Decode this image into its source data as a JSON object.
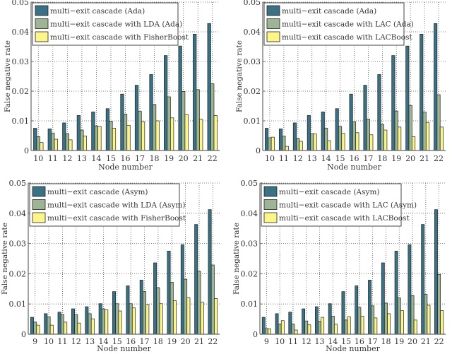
{
  "colors": {
    "series1": "#3a7184",
    "series2": "#9db594",
    "series3": "#fcf58a",
    "bar_edge": "#222222",
    "grid": "#555555",
    "axis": "#666666"
  },
  "chart_data": [
    {
      "type": "bar",
      "title": "",
      "xlabel": "Node number",
      "ylabel": "False negative rate",
      "ylim": [
        0,
        0.05
      ],
      "yticks": [
        "0",
        "0.01",
        "0.02",
        "0.03",
        "0.04",
        "0.05"
      ],
      "grid": true,
      "legend_position": "top-left",
      "categories": [
        "10",
        "11",
        "12",
        "13",
        "14",
        "15",
        "16",
        "17",
        "18",
        "19",
        "20",
        "21",
        "22"
      ],
      "series": [
        {
          "name": "multi−exit cascade (Ada)",
          "values": [
            0.0075,
            0.0073,
            0.0093,
            0.0118,
            0.013,
            0.0141,
            0.019,
            0.022,
            0.0256,
            0.032,
            0.0352,
            0.0392,
            0.0428
          ]
        },
        {
          "name": "multi−exit cascade with LDA (Ada)",
          "values": [
            0.0047,
            0.0059,
            0.0057,
            0.0069,
            0.0083,
            0.0099,
            0.0123,
            0.0132,
            0.0155,
            0.0181,
            0.0199,
            0.0205,
            0.0225
          ]
        },
        {
          "name": "multi−exit cascade with FisherBoost",
          "values": [
            0.0027,
            0.0038,
            0.0036,
            0.0049,
            0.0081,
            0.0075,
            0.0085,
            0.0097,
            0.01,
            0.011,
            0.0121,
            0.0105,
            0.0118
          ]
        }
      ]
    },
    {
      "type": "bar",
      "title": "",
      "xlabel": "Node number",
      "ylabel": "False negative rate",
      "ylim": [
        0,
        0.05
      ],
      "yticks": [
        "0",
        "0.01",
        "0.02",
        "0.03",
        "0.04",
        "0.05"
      ],
      "grid": true,
      "legend_position": "top-left",
      "categories": [
        "10",
        "11",
        "12",
        "13",
        "14",
        "15",
        "16",
        "17",
        "18",
        "19",
        "20",
        "21",
        "22"
      ],
      "series": [
        {
          "name": "multi−exit cascade (Ada)",
          "values": [
            0.0075,
            0.0073,
            0.0093,
            0.0118,
            0.013,
            0.0141,
            0.019,
            0.022,
            0.0256,
            0.032,
            0.0352,
            0.0392,
            0.0428
          ]
        },
        {
          "name": "multi−exit cascade with LAC (Ada)",
          "values": [
            0.0043,
            0.0049,
            0.0041,
            0.0057,
            0.0075,
            0.0081,
            0.0097,
            0.0106,
            0.0088,
            0.0133,
            0.0152,
            0.013,
            0.0188
          ]
        },
        {
          "name": "multi−exit cascade with LACBoost",
          "values": [
            0.0045,
            0.0014,
            0.0031,
            0.0056,
            0.0033,
            0.0058,
            0.006,
            0.0053,
            0.0069,
            0.0079,
            0.0047,
            0.0095,
            0.0079
          ]
        }
      ]
    },
    {
      "type": "bar",
      "title": "",
      "xlabel": "Node number",
      "ylabel": "False negative rate",
      "ylim": [
        0,
        0.05
      ],
      "yticks": [
        "0",
        "0.01",
        "0.02",
        "0.03",
        "0.04",
        "0.05"
      ],
      "grid": true,
      "legend_position": "top-left",
      "categories": [
        "9",
        "10",
        "11",
        "12",
        "13",
        "14",
        "15",
        "16",
        "17",
        "18",
        "19",
        "20",
        "21",
        "22"
      ],
      "series": [
        {
          "name": "multi−exit cascade (Asym)",
          "values": [
            0.0056,
            0.0068,
            0.0073,
            0.0084,
            0.0091,
            0.0101,
            0.0141,
            0.016,
            0.0179,
            0.0236,
            0.0275,
            0.0296,
            0.0363,
            0.0412
          ]
        },
        {
          "name": "multi−exit cascade with LDA (Asym)",
          "values": [
            0.004,
            0.0058,
            0.0065,
            0.0065,
            0.0068,
            0.0084,
            0.0101,
            0.0101,
            0.0141,
            0.0154,
            0.0172,
            0.0182,
            0.0208,
            0.0229
          ]
        },
        {
          "name": "multi−exit cascade with FisherBoost",
          "values": [
            0.003,
            0.003,
            0.004,
            0.0037,
            0.0051,
            0.0081,
            0.0077,
            0.0087,
            0.0098,
            0.0101,
            0.0111,
            0.0121,
            0.0106,
            0.0118
          ]
        }
      ]
    },
    {
      "type": "bar",
      "title": "",
      "xlabel": "Node number",
      "ylabel": "False negative rate",
      "ylim": [
        0,
        0.05
      ],
      "yticks": [
        "0",
        "0.01",
        "0.02",
        "0.03",
        "0.04",
        "0.05"
      ],
      "grid": true,
      "legend_position": "top-left",
      "categories": [
        "9",
        "10",
        "11",
        "12",
        "13",
        "14",
        "15",
        "16",
        "17",
        "18",
        "19",
        "20",
        "21",
        "22"
      ],
      "series": [
        {
          "name": "multi−exit cascade (Asym)",
          "values": [
            0.0056,
            0.0068,
            0.0073,
            0.0084,
            0.0091,
            0.0101,
            0.0141,
            0.016,
            0.0179,
            0.0236,
            0.0275,
            0.0296,
            0.0363,
            0.0412
          ]
        },
        {
          "name": "multi−exit cascade with LAC (Asym)",
          "values": [
            0.0019,
            0.0033,
            0.0033,
            0.0044,
            0.0043,
            0.006,
            0.0047,
            0.0089,
            0.0094,
            0.0103,
            0.012,
            0.0128,
            0.0132,
            0.0198
          ]
        },
        {
          "name": "multi−exit cascade with LACBoost",
          "values": [
            0.0018,
            0.0045,
            0.0014,
            0.0031,
            0.0056,
            0.0033,
            0.0058,
            0.006,
            0.0054,
            0.0068,
            0.0078,
            0.0047,
            0.0096,
            0.0078
          ]
        }
      ]
    }
  ]
}
